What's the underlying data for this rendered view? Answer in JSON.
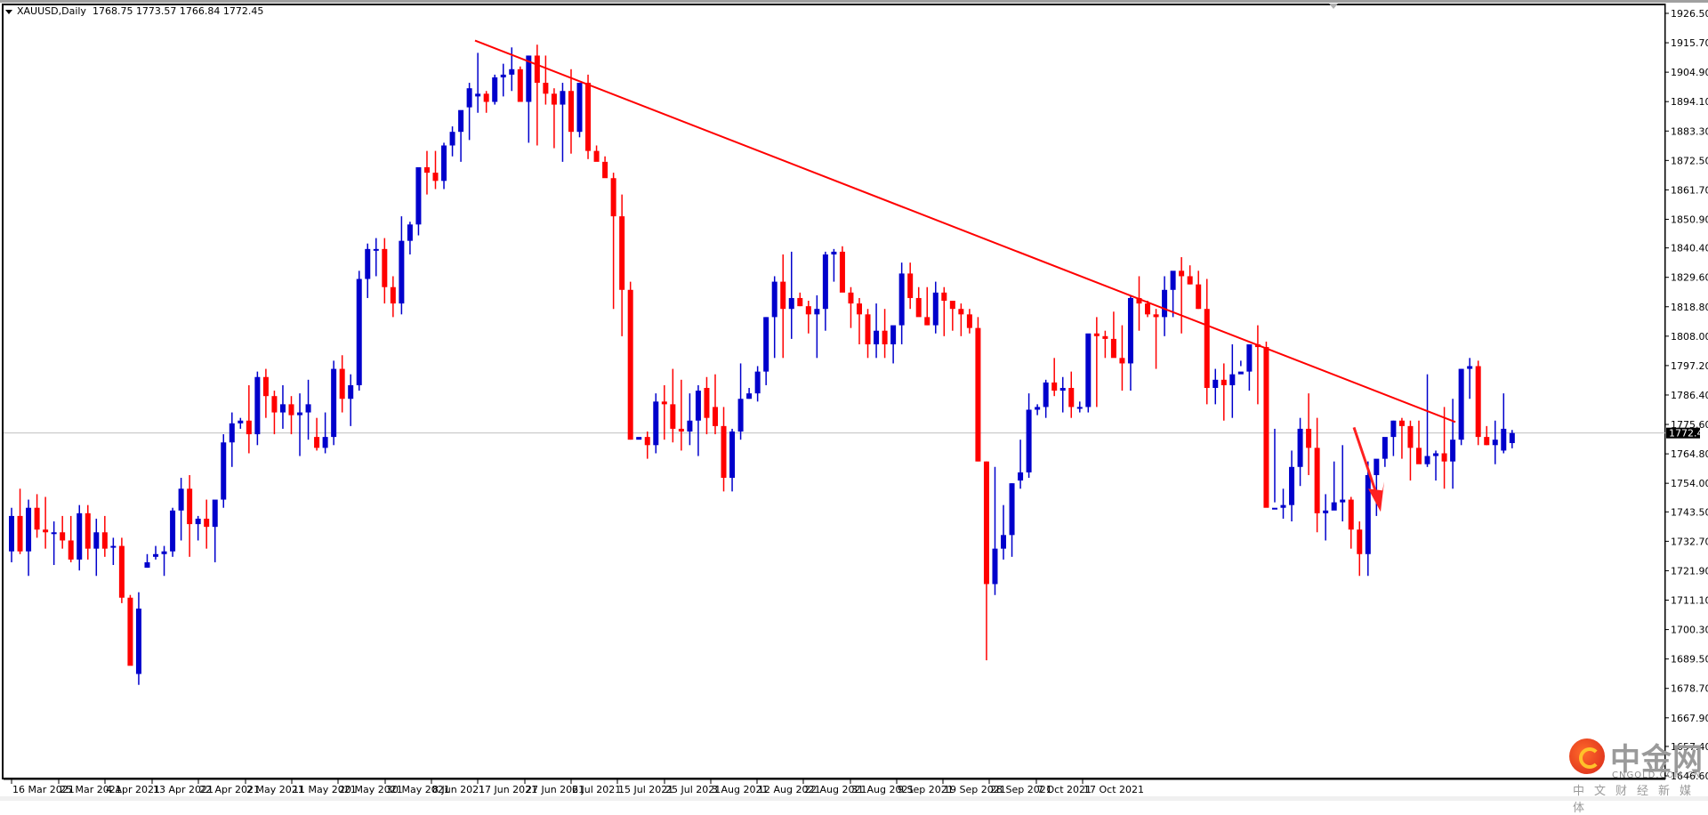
{
  "window": {
    "symbol": "XAUUSD",
    "timeframe": "Daily",
    "title_label": "XAUUSD,Daily",
    "ohlc_label": "1768.75 1773.57 1766.84 1772.45"
  },
  "colors": {
    "bull": "#0000CC",
    "bear": "#FF0000",
    "trendline": "#FF0000",
    "price_line": "#C0C0C0",
    "price_tag_bg": "#000000",
    "price_tag_fg": "#FFFFFF"
  },
  "watermark": {
    "cn": "中金网",
    "en": "CNGOLD.COM.CN",
    "sub": "中文财经新媒体"
  },
  "chart_data": {
    "type": "candlestick",
    "title": "XAUUSD,Daily",
    "xlabel": "",
    "ylabel": "",
    "ylim": [
      1646.6,
      1926.5
    ],
    "grid": false,
    "y_ticks": [
      "1926.50",
      "1915.70",
      "1904.90",
      "1894.10",
      "1883.30",
      "1872.50",
      "1861.70",
      "1850.90",
      "1840.40",
      "1829.60",
      "1818.80",
      "1808.00",
      "1797.20",
      "1786.40",
      "1775.60",
      "1764.80",
      "1754.00",
      "1743.50",
      "1732.70",
      "1721.90",
      "1711.10",
      "1700.30",
      "1689.50",
      "1678.70",
      "1667.90",
      "1657.40",
      "1646.60"
    ],
    "x_ticks": [
      "16 Mar 2021",
      "25 Mar 2021",
      "4 Apr 2021",
      "13 Apr 2021",
      "22 Apr 2021",
      "2 May 2021",
      "11 May 2021",
      "20 May 2021",
      "30 May 2021",
      "8 Jun 2021",
      "17 Jun 2021",
      "27 Jun 2021",
      "6 Jul 2021",
      "15 Jul 2021",
      "25 Jul 2021",
      "3 Aug 2021",
      "12 Aug 2021",
      "22 Aug 2021",
      "31 Aug 2021",
      "9 Sep 2021",
      "19 Sep 2021",
      "28 Sep 2021",
      "7 Oct 2021",
      "17 Oct 2021"
    ],
    "current_price": 1772.45,
    "last_bar": {
      "open": 1768.75,
      "high": 1773.57,
      "low": 1766.84,
      "close": 1772.45
    },
    "trendline": {
      "from": {
        "bar": 52,
        "price": 1916.5
      },
      "to": {
        "bar": 164,
        "price": 1776.5
      }
    },
    "annotation_arrow": {
      "direction": "down",
      "from_bar": 154,
      "from_price": 1774.5,
      "to_bar": 157,
      "to_price": 1743.5
    },
    "candles": [
      [
        1729,
        1745,
        1725,
        1742
      ],
      [
        1742,
        1752,
        1728,
        1729
      ],
      [
        1729,
        1748,
        1720,
        1745
      ],
      [
        1745,
        1750,
        1734,
        1737
      ],
      [
        1737,
        1749,
        1730,
        1736
      ],
      [
        1736,
        1740,
        1724,
        1736
      ],
      [
        1736,
        1742,
        1730,
        1733
      ],
      [
        1733,
        1742,
        1725,
        1726
      ],
      [
        1726,
        1746,
        1722,
        1743
      ],
      [
        1743,
        1746,
        1726,
        1730
      ],
      [
        1730,
        1741,
        1720,
        1736
      ],
      [
        1736,
        1742,
        1727,
        1730
      ],
      [
        1731,
        1734,
        1724,
        1731
      ],
      [
        1731,
        1734,
        1710,
        1712
      ],
      [
        1712,
        1713,
        1690,
        1687
      ],
      [
        1684,
        1714,
        1680,
        1708
      ],
      [
        1723,
        1728,
        1723,
        1725
      ],
      [
        1727,
        1731,
        1726,
        1728
      ],
      [
        1728,
        1731,
        1720,
        1729
      ],
      [
        1729,
        1745,
        1727,
        1744
      ],
      [
        1744,
        1756,
        1733,
        1752
      ],
      [
        1752,
        1757,
        1727,
        1739
      ],
      [
        1739,
        1742,
        1733,
        1741
      ],
      [
        1741,
        1748,
        1730,
        1738
      ],
      [
        1738,
        1745,
        1725,
        1748
      ],
      [
        1748,
        1772,
        1745,
        1769
      ],
      [
        1769,
        1780,
        1760,
        1776
      ],
      [
        1776,
        1778,
        1774,
        1777
      ],
      [
        1777,
        1790,
        1765,
        1772
      ],
      [
        1772,
        1795,
        1768,
        1793
      ],
      [
        1793,
        1796,
        1778,
        1786
      ],
      [
        1786,
        1788,
        1772,
        1780
      ],
      [
        1780,
        1790,
        1774,
        1783
      ],
      [
        1783,
        1786,
        1772,
        1779
      ],
      [
        1779,
        1787,
        1764,
        1780
      ],
      [
        1780,
        1792,
        1770,
        1783
      ],
      [
        1771,
        1778,
        1766,
        1767
      ],
      [
        1767,
        1780,
        1765,
        1771
      ],
      [
        1771,
        1799,
        1768,
        1796
      ],
      [
        1796,
        1801,
        1780,
        1785
      ],
      [
        1785,
        1794,
        1775,
        1790
      ],
      [
        1790,
        1832,
        1788,
        1829
      ],
      [
        1829,
        1842,
        1822,
        1840
      ],
      [
        1840,
        1844,
        1830,
        1840
      ],
      [
        1840,
        1844,
        1820,
        1826
      ],
      [
        1826,
        1830,
        1815,
        1820
      ],
      [
        1820,
        1852,
        1816,
        1843
      ],
      [
        1843,
        1850,
        1838,
        1849
      ],
      [
        1849,
        1867,
        1845,
        1870
      ],
      [
        1870,
        1876,
        1860,
        1868
      ],
      [
        1868,
        1876,
        1862,
        1865
      ],
      [
        1865,
        1879,
        1862,
        1878
      ],
      [
        1878,
        1885,
        1874,
        1883
      ],
      [
        1883,
        1890,
        1872,
        1891
      ],
      [
        1892,
        1901,
        1880,
        1899
      ],
      [
        1896,
        1912,
        1890,
        1897
      ],
      [
        1897,
        1898,
        1890,
        1894
      ],
      [
        1894,
        1904,
        1893,
        1903
      ],
      [
        1903,
        1908,
        1896,
        1904
      ],
      [
        1904,
        1914,
        1898,
        1906
      ],
      [
        1906,
        1907,
        1894,
        1894
      ],
      [
        1894,
        1911,
        1879,
        1911
      ],
      [
        1911,
        1915,
        1878,
        1901
      ],
      [
        1901,
        1911,
        1893,
        1897
      ],
      [
        1897,
        1899,
        1877,
        1893
      ],
      [
        1893,
        1901,
        1872,
        1898
      ],
      [
        1898,
        1906,
        1875,
        1883
      ],
      [
        1883,
        1901,
        1881,
        1901
      ],
      [
        1901,
        1904,
        1873,
        1876
      ],
      [
        1876,
        1878,
        1873,
        1872
      ],
      [
        1872,
        1874,
        1872,
        1866
      ],
      [
        1866,
        1868,
        1818,
        1852
      ],
      [
        1852,
        1860,
        1808,
        1825
      ],
      [
        1825,
        1828,
        1770,
        1770
      ],
      [
        1770,
        1772,
        1772,
        1771
      ],
      [
        1771,
        1773,
        1763,
        1768
      ],
      [
        1768,
        1787,
        1765,
        1784
      ],
      [
        1784,
        1790,
        1770,
        1783
      ],
      [
        1783,
        1796,
        1769,
        1774
      ],
      [
        1774,
        1792,
        1766,
        1773
      ],
      [
        1773,
        1787,
        1768,
        1777
      ],
      [
        1777,
        1790,
        1764,
        1788
      ],
      [
        1789,
        1793,
        1772,
        1778
      ],
      [
        1782,
        1794,
        1772,
        1775
      ],
      [
        1775,
        1782,
        1751,
        1756
      ],
      [
        1756,
        1774,
        1751,
        1773
      ],
      [
        1773,
        1798,
        1770,
        1785
      ],
      [
        1785,
        1789,
        1785,
        1787
      ],
      [
        1787,
        1797,
        1784,
        1795
      ],
      [
        1795,
        1815,
        1790,
        1815
      ],
      [
        1815,
        1830,
        1800,
        1828
      ],
      [
        1828,
        1838,
        1800,
        1818
      ],
      [
        1818,
        1839,
        1807,
        1822
      ],
      [
        1822,
        1824,
        1819,
        1819
      ],
      [
        1819,
        1821,
        1809,
        1816
      ],
      [
        1816,
        1823,
        1800,
        1818
      ],
      [
        1818,
        1839,
        1810,
        1838
      ],
      [
        1838,
        1840,
        1828,
        1839
      ],
      [
        1839,
        1841,
        1831,
        1824
      ],
      [
        1824,
        1826,
        1811,
        1820
      ],
      [
        1820,
        1822,
        1805,
        1816
      ],
      [
        1816,
        1818,
        1800,
        1805
      ],
      [
        1805,
        1820,
        1800,
        1810
      ],
      [
        1810,
        1818,
        1800,
        1805
      ],
      [
        1805,
        1808,
        1798,
        1812
      ],
      [
        1812,
        1835,
        1805,
        1831
      ],
      [
        1831,
        1835,
        1818,
        1822
      ],
      [
        1822,
        1826,
        1817,
        1815
      ],
      [
        1815,
        1826,
        1812,
        1812
      ],
      [
        1812,
        1828,
        1809,
        1824
      ],
      [
        1824,
        1826,
        1808,
        1821
      ],
      [
        1821,
        1821,
        1810,
        1818
      ],
      [
        1818,
        1820,
        1808,
        1816
      ],
      [
        1816,
        1818,
        1809,
        1811
      ],
      [
        1811,
        1815,
        1762,
        1762
      ],
      [
        1762,
        1762,
        1689,
        1717
      ],
      [
        1717,
        1760,
        1713,
        1730
      ],
      [
        1730,
        1746,
        1726,
        1735
      ],
      [
        1735,
        1754,
        1727,
        1754
      ],
      [
        1755,
        1770,
        1752,
        1758
      ],
      [
        1758,
        1787,
        1756,
        1781
      ],
      [
        1781,
        1783,
        1779,
        1782
      ],
      [
        1782,
        1792,
        1778,
        1791
      ],
      [
        1791,
        1800,
        1786,
        1788
      ],
      [
        1788,
        1793,
        1780,
        1789
      ],
      [
        1789,
        1795,
        1778,
        1782
      ],
      [
        1782,
        1784,
        1780,
        1782
      ],
      [
        1782,
        1808,
        1780,
        1809
      ],
      [
        1809,
        1815,
        1782,
        1808
      ],
      [
        1808,
        1810,
        1800,
        1807
      ],
      [
        1807,
        1817,
        1806,
        1800
      ],
      [
        1800,
        1812,
        1788,
        1798
      ],
      [
        1798,
        1823,
        1788,
        1822
      ],
      [
        1822,
        1830,
        1810,
        1820
      ],
      [
        1820,
        1821,
        1815,
        1816
      ],
      [
        1816,
        1818,
        1796,
        1815
      ],
      [
        1815,
        1830,
        1808,
        1825
      ],
      [
        1825,
        1830,
        1815,
        1832
      ],
      [
        1832,
        1837,
        1809,
        1830
      ],
      [
        1830,
        1834,
        1827,
        1827
      ],
      [
        1827,
        1832,
        1818,
        1818
      ],
      [
        1818,
        1829,
        1783,
        1789
      ],
      [
        1789,
        1796,
        1783,
        1792
      ],
      [
        1792,
        1798,
        1777,
        1790
      ],
      [
        1790,
        1805,
        1778,
        1794
      ],
      [
        1794,
        1799,
        1797,
        1795
      ],
      [
        1795,
        1802,
        1788,
        1805
      ],
      [
        1805,
        1812,
        1783,
        1804
      ],
      [
        1804,
        1806,
        1770,
        1745
      ],
      [
        1745,
        1774,
        1747,
        1745
      ],
      [
        1745,
        1752,
        1741,
        1746
      ],
      [
        1746,
        1766,
        1740,
        1760
      ],
      [
        1760,
        1778,
        1753,
        1774
      ],
      [
        1774,
        1787,
        1757,
        1767
      ],
      [
        1767,
        1778,
        1736,
        1743
      ],
      [
        1743,
        1750,
        1733,
        1744
      ],
      [
        1744,
        1762,
        1745,
        1747
      ],
      [
        1747,
        1768,
        1740,
        1748
      ],
      [
        1748,
        1749,
        1730,
        1737
      ],
      [
        1737,
        1740,
        1720,
        1728
      ],
      [
        1728,
        1762,
        1720,
        1757
      ],
      [
        1757,
        1762,
        1742,
        1763
      ],
      [
        1763,
        1770,
        1760,
        1771
      ],
      [
        1771,
        1777,
        1764,
        1777
      ],
      [
        1777,
        1778,
        1763,
        1775
      ],
      [
        1775,
        1777,
        1755,
        1767
      ],
      [
        1767,
        1777,
        1764,
        1761
      ],
      [
        1761,
        1794,
        1760,
        1764
      ],
      [
        1764,
        1766,
        1755,
        1765
      ],
      [
        1765,
        1782,
        1752,
        1762
      ],
      [
        1762,
        1785,
        1752,
        1770
      ],
      [
        1770,
        1796,
        1768,
        1796
      ],
      [
        1796,
        1800,
        1785,
        1797
      ],
      [
        1797,
        1799,
        1768,
        1771
      ],
      [
        1771,
        1775,
        1768,
        1768
      ],
      [
        1768,
        1777,
        1761,
        1770
      ],
      [
        1766,
        1787,
        1765,
        1774
      ],
      [
        1768.75,
        1773.57,
        1766.84,
        1772.45
      ]
    ]
  }
}
